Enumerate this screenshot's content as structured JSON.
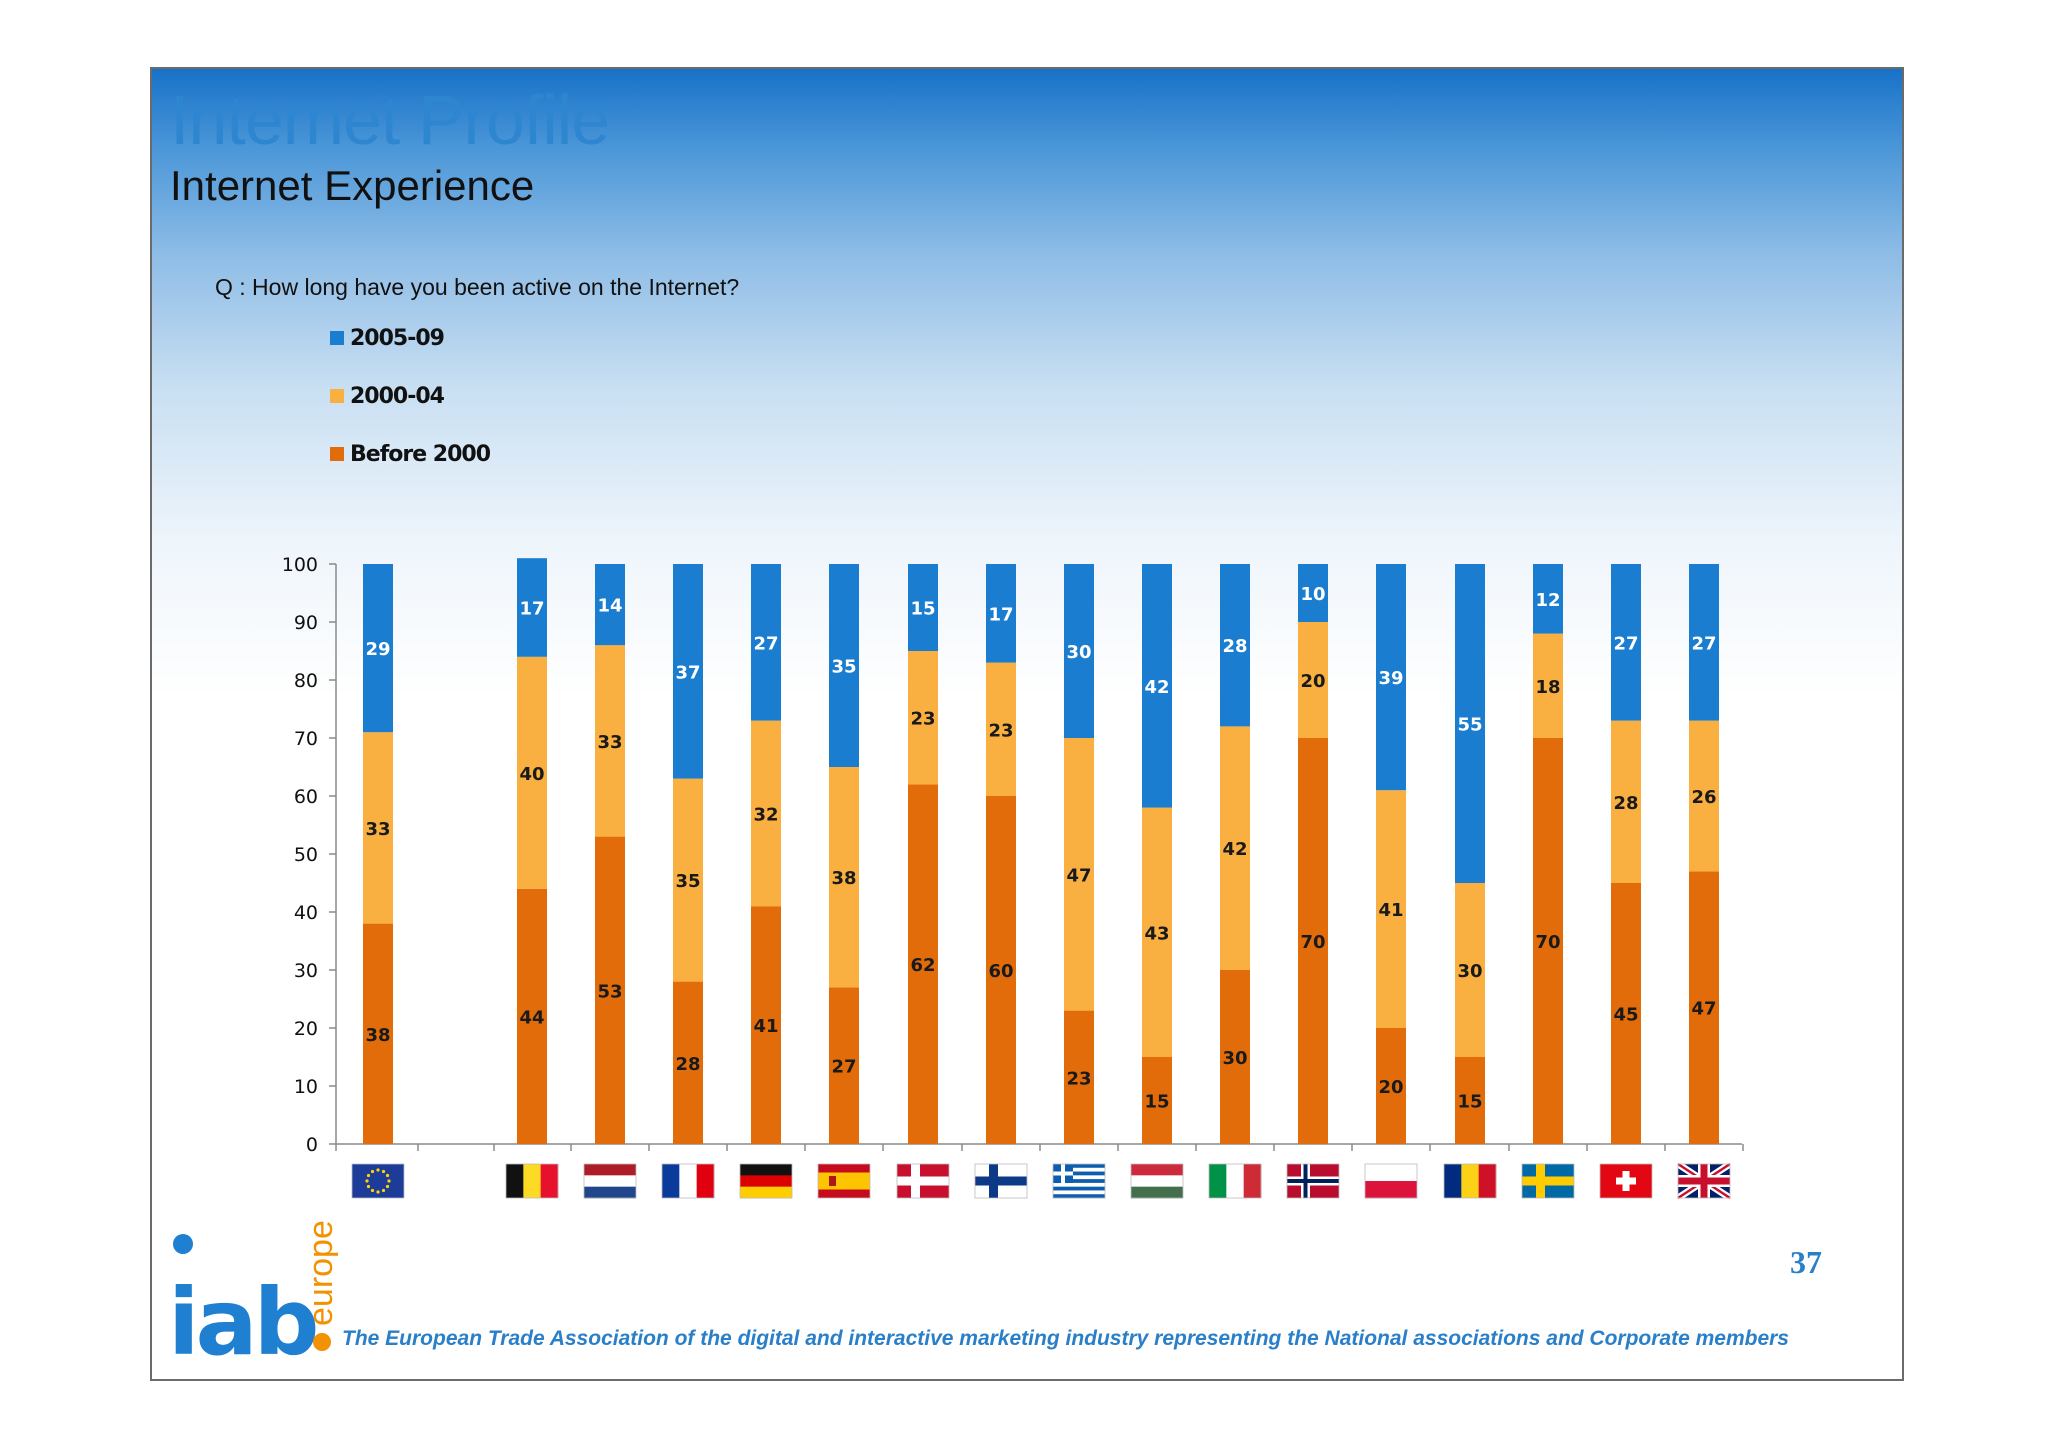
{
  "header": {
    "title": "Internet Profile",
    "subtitle": "Internet Experience"
  },
  "question": "Q : How long have you been active on the Internet?",
  "legend": [
    {
      "label": "2005-09",
      "color": "#1a7dd0"
    },
    {
      "label": "2000-04",
      "color": "#f9b040"
    },
    {
      "label": "Before 2000",
      "color": "#e36c0a"
    }
  ],
  "chart_data": {
    "type": "bar",
    "stacked": true,
    "categories": [
      "EU",
      "Belgium",
      "Netherlands",
      "France",
      "Germany",
      "Spain",
      "Denmark",
      "Finland",
      "Greece",
      "Hungary",
      "Italy",
      "Norway",
      "Poland",
      "Romania",
      "Sweden",
      "Switzerland",
      "UK"
    ],
    "series": [
      {
        "name": "Before 2000",
        "color": "#e36c0a",
        "values": [
          38,
          44,
          53,
          28,
          41,
          27,
          62,
          60,
          23,
          15,
          30,
          70,
          20,
          15,
          70,
          45,
          47
        ]
      },
      {
        "name": "2000-04",
        "color": "#f9b040",
        "values": [
          33,
          40,
          33,
          35,
          32,
          38,
          23,
          23,
          47,
          43,
          42,
          20,
          41,
          30,
          18,
          28,
          26
        ]
      },
      {
        "name": "2005-09",
        "color": "#1a7dd0",
        "values": [
          29,
          17,
          14,
          37,
          27,
          35,
          15,
          17,
          30,
          42,
          28,
          10,
          39,
          55,
          12,
          27,
          27
        ]
      }
    ],
    "ylim": [
      0,
      100
    ],
    "yticks": [
      0,
      10,
      20,
      30,
      40,
      50,
      60,
      70,
      80,
      90,
      100
    ],
    "xlabel": "",
    "ylabel": ""
  },
  "flags": [
    "eu-flag-icon",
    "belgium-flag-icon",
    "netherlands-flag-icon",
    "france-flag-icon",
    "germany-flag-icon",
    "spain-flag-icon",
    "denmark-flag-icon",
    "finland-flag-icon",
    "greece-flag-icon",
    "hungary-flag-icon",
    "italy-flag-icon",
    "norway-flag-icon",
    "poland-flag-icon",
    "romania-flag-icon",
    "sweden-flag-icon",
    "switzerland-flag-icon",
    "uk-flag-icon"
  ],
  "footer": {
    "page_number": "37",
    "tagline": "The European Trade Association of the digital and interactive marketing industry representing the National associations and Corporate members",
    "logo_main": "iab",
    "logo_sub": "europe"
  }
}
